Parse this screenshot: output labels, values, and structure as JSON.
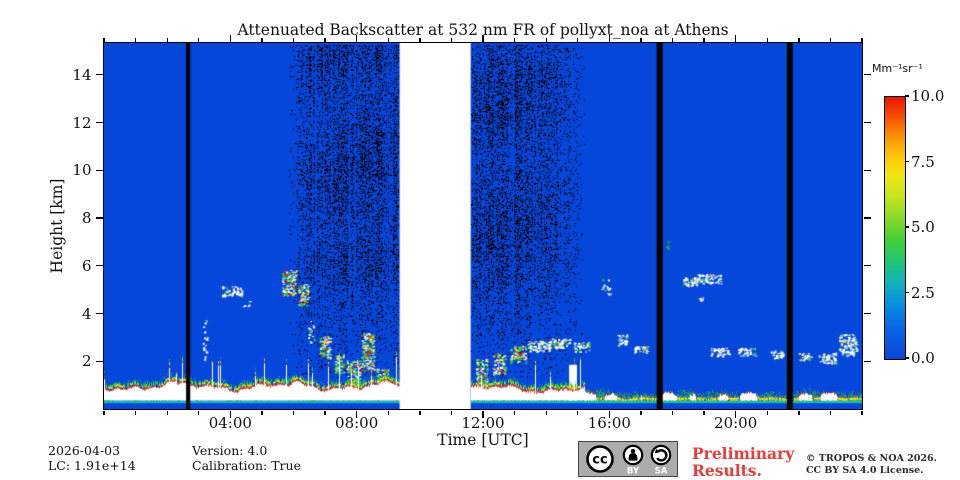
{
  "chart_data": {
    "type": "heatmap",
    "title": "Attenuated Backscatter at 532 nm FR of pollyxt_noa at Athens",
    "description": "Lidar quicklook: time-height attenuated backscatter, blue background (~0), white/red boundary-layer aerosol below ~1 km, scattered clouds 2-6 km, daytime noise speckle aloft, white no-data gap, black calibration bars",
    "axes": {
      "xlabel": "Time [UTC]",
      "ylabel": "Height [km]",
      "x_range_hours": [
        0,
        24
      ],
      "y_range_km": [
        0,
        15.33
      ],
      "x_ticks": [
        {
          "label": "04:00",
          "hour": 4
        },
        {
          "label": "08:00",
          "hour": 8
        },
        {
          "label": "12:00",
          "hour": 12
        },
        {
          "label": "16:00",
          "hour": 16
        },
        {
          "label": "20:00",
          "hour": 20
        }
      ],
      "x_minor_every_hours": 1,
      "y_ticks": [
        {
          "label": "2",
          "km": 2
        },
        {
          "label": "4",
          "km": 4
        },
        {
          "label": "6",
          "km": 6
        },
        {
          "label": "8",
          "km": 8
        },
        {
          "label": "10",
          "km": 10
        },
        {
          "label": "12",
          "km": 12
        },
        {
          "label": "14",
          "km": 14
        }
      ]
    },
    "colorbar": {
      "label": "Mm⁻¹sr⁻¹",
      "range": [
        0,
        10
      ],
      "ticks": [
        {
          "label": "10.0",
          "value": 10
        },
        {
          "label": "7.5",
          "value": 7.5
        },
        {
          "label": "5.0",
          "value": 5
        },
        {
          "label": "2.5",
          "value": 2.5
        },
        {
          "label": "0.0",
          "value": 0
        }
      ],
      "gradient_stops": [
        [
          0.0,
          "#0a45d9"
        ],
        [
          0.12,
          "#0766e8"
        ],
        [
          0.22,
          "#0a93dc"
        ],
        [
          0.3,
          "#12b5b5"
        ],
        [
          0.38,
          "#23c66c"
        ],
        [
          0.46,
          "#46cf33"
        ],
        [
          0.54,
          "#8cd92a"
        ],
        [
          0.62,
          "#c6e51e"
        ],
        [
          0.7,
          "#f0e713"
        ],
        [
          0.78,
          "#fdc307"
        ],
        [
          0.86,
          "#fc8903"
        ],
        [
          0.93,
          "#f64a02"
        ],
        [
          1.0,
          "#e81600"
        ]
      ]
    },
    "colors": {
      "background": "#0546db",
      "noise": "#000000",
      "white": "#ffffff",
      "red": "#e83000",
      "orange": "#fb7a00",
      "yellow": "#efe51e",
      "green": "#2fc82f",
      "teal": "#14c0b4"
    },
    "noise_seed": 11,
    "data_gaps_hours": [
      [
        9.36,
        11.61
      ]
    ],
    "calibration_bars_hours": [
      [
        2.6,
        2.73
      ],
      [
        17.5,
        17.69
      ],
      [
        21.62,
        21.81
      ]
    ],
    "noise_regions": [
      {
        "start": 5.85,
        "end": 9.36,
        "taper_in": 0.7,
        "taper_out": 0.05,
        "bottom_km": 1.3
      },
      {
        "start": 11.61,
        "end": 15.2,
        "taper_in": 0.05,
        "taper_out": 0.9,
        "bottom_km": 1.3
      }
    ],
    "clouds": [
      {
        "t": 3.2,
        "z": 3.0,
        "w": 0.15,
        "h": 1.8,
        "d": "dots"
      },
      {
        "t": 4.05,
        "z": 4.95,
        "w": 0.65,
        "h": 0.4,
        "d": "streak"
      },
      {
        "t": 4.5,
        "z": 4.4,
        "w": 0.25,
        "h": 0.3,
        "d": "dots"
      },
      {
        "t": 5.85,
        "z": 5.3,
        "w": 0.45,
        "h": 1.1,
        "d": "mixed"
      },
      {
        "t": 6.3,
        "z": 4.8,
        "w": 0.35,
        "h": 0.9,
        "d": "mixed"
      },
      {
        "t": 6.55,
        "z": 3.3,
        "w": 0.2,
        "h": 1.0,
        "d": "dots"
      },
      {
        "t": 7.0,
        "z": 2.6,
        "w": 0.35,
        "h": 0.9,
        "d": "mixed"
      },
      {
        "t": 7.45,
        "z": 1.9,
        "w": 0.3,
        "h": 0.8,
        "d": "mixed"
      },
      {
        "t": 7.9,
        "z": 1.5,
        "w": 0.45,
        "h": 1.1,
        "d": "mixed"
      },
      {
        "t": 8.35,
        "z": 2.4,
        "w": 0.4,
        "h": 1.6,
        "d": "mixed"
      },
      {
        "t": 8.8,
        "z": 1.3,
        "w": 0.35,
        "h": 0.8,
        "d": "mixed"
      },
      {
        "t": 11.95,
        "z": 1.5,
        "w": 0.35,
        "h": 1.2,
        "d": "mixed"
      },
      {
        "t": 12.5,
        "z": 1.9,
        "w": 0.4,
        "h": 0.9,
        "d": "mixed"
      },
      {
        "t": 13.1,
        "z": 2.3,
        "w": 0.5,
        "h": 0.7,
        "d": "mixed"
      },
      {
        "t": 13.75,
        "z": 2.65,
        "w": 0.7,
        "h": 0.45,
        "d": "white"
      },
      {
        "t": 14.4,
        "z": 2.75,
        "w": 0.7,
        "h": 0.4,
        "d": "white"
      },
      {
        "t": 14.85,
        "z": 1.1,
        "w": 0.25,
        "h": 1.5,
        "d": "column"
      },
      {
        "t": 15.1,
        "z": 2.6,
        "w": 0.5,
        "h": 0.4,
        "d": "white"
      },
      {
        "t": 15.9,
        "z": 5.15,
        "w": 0.3,
        "h": 0.7,
        "d": "dots"
      },
      {
        "t": 16.4,
        "z": 2.9,
        "w": 0.3,
        "h": 0.5,
        "d": "white"
      },
      {
        "t": 17.0,
        "z": 2.5,
        "w": 0.5,
        "h": 0.3,
        "d": "white"
      },
      {
        "t": 17.85,
        "z": 6.9,
        "w": 0.15,
        "h": 0.3,
        "d": "green-dots"
      },
      {
        "t": 18.55,
        "z": 5.35,
        "w": 0.45,
        "h": 0.35,
        "d": "white"
      },
      {
        "t": 18.9,
        "z": 4.6,
        "w": 0.15,
        "h": 0.2,
        "d": "dots"
      },
      {
        "t": 19.15,
        "z": 5.45,
        "w": 0.75,
        "h": 0.4,
        "d": "white"
      },
      {
        "t": 19.5,
        "z": 2.4,
        "w": 0.6,
        "h": 0.35,
        "d": "white"
      },
      {
        "t": 20.35,
        "z": 2.4,
        "w": 0.55,
        "h": 0.35,
        "d": "white"
      },
      {
        "t": 21.3,
        "z": 2.3,
        "w": 0.4,
        "h": 0.3,
        "d": "white"
      },
      {
        "t": 22.2,
        "z": 2.2,
        "w": 0.4,
        "h": 0.3,
        "d": "white"
      },
      {
        "t": 22.9,
        "z": 2.15,
        "w": 0.55,
        "h": 0.45,
        "d": "white"
      },
      {
        "t": 23.55,
        "z": 2.7,
        "w": 0.55,
        "h": 0.9,
        "d": "white"
      }
    ],
    "boundary_layer": {
      "white_base_km": 0.35,
      "strip_line_km": 0.33,
      "segments": [
        {
          "start": 0,
          "end": 9.36,
          "style": "thick",
          "top_km": 0.95,
          "jitter_km": 0.25,
          "spike_prob": 0.06
        },
        {
          "start": 11.61,
          "end": 15.2,
          "style": "thick",
          "top_km": 0.85,
          "jitter_km": 0.22,
          "spike_prob": 0.05
        },
        {
          "start": 15.2,
          "end": 24,
          "style": "thin",
          "top_km": 0.8,
          "jitter_km": 0.15,
          "spike_prob": 0
        }
      ]
    }
  },
  "footer": {
    "date": "2026-04-03",
    "lc": "LC: 1.91e+14",
    "version": "Version: 4.0",
    "calibration": "Calibration: True"
  },
  "preliminary": {
    "line1": "Preliminary",
    "line2": "Results.",
    "color": "#e73c3c"
  },
  "copyright": {
    "line1": "© TROPOS & NOA 2026.",
    "line2": "CC BY SA 4.0 License."
  },
  "badge": {
    "cc": "cc",
    "by": "BY",
    "sa": "SA"
  }
}
